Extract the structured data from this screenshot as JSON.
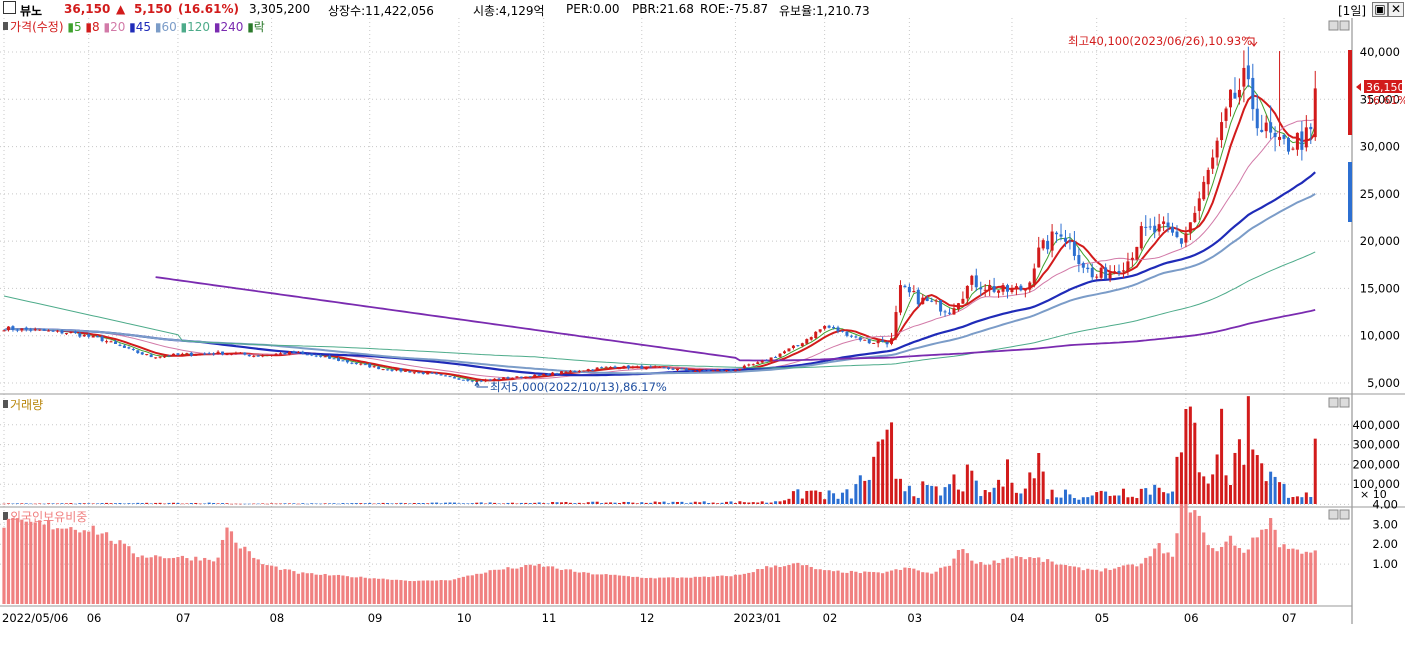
{
  "header": {
    "checkbox": "",
    "name": "뷰노",
    "price": "36,150",
    "change_arrow": "▲",
    "change": "5,150",
    "change_pct": "(16.61%)",
    "volume": "3,305,200",
    "shares": "상장수:11,422,056",
    "mktcap": "시총:4,129억",
    "per": "PER:0.00",
    "pbr": "PBR:21.68",
    "roe": "ROE:-75.87",
    "reserve": "유보율:1,210.73",
    "period": "[1일]",
    "btn_restore": "▣",
    "btn_close": "✕"
  },
  "panels": {
    "price_legend": [
      {
        "text": "가격(수정)",
        "color": "#d21b1b"
      },
      {
        "text": "5",
        "color": "#3fa12e"
      },
      {
        "text": "8",
        "color": "#d21b1b"
      },
      {
        "text": "20",
        "color": "#d27aa8"
      },
      {
        "text": "45",
        "color": "#1f2bb8"
      },
      {
        "text": "60",
        "color": "#7b9cc8"
      },
      {
        "text": "120",
        "color": "#4dab8a"
      },
      {
        "text": "240",
        "color": "#7a2bb0"
      },
      {
        "text": "락",
        "color": "#2b7a2b"
      }
    ],
    "volume_legend": "거래량",
    "foreign_legend": "외국인보유비중",
    "high_annot": "최고40,100(2023/06/26),10.93%",
    "low_annot": "최저5,000(2022/10/13),86.17%",
    "last_price": "36,150",
    "last_pct": "16.61%",
    "volume_unit": "× 10"
  },
  "chart_data": {
    "type": "candlestick",
    "ticker": "뷰노",
    "price_axis_ticks": [
      5000,
      10000,
      15000,
      20000,
      25000,
      30000,
      35000,
      40000
    ],
    "price_axis_labels": [
      "5,000",
      "10,000",
      "15,000",
      "20,000",
      "25,000",
      "30,000",
      "35,000",
      "40,000"
    ],
    "volume_axis_ticks": [
      100000,
      200000,
      300000,
      400000
    ],
    "volume_axis_labels": [
      "100,000",
      "200,000",
      "300,000",
      "400,000"
    ],
    "foreign_axis_ticks": [
      1,
      2,
      3,
      4
    ],
    "foreign_axis_labels": [
      "1.00",
      "2.00",
      "3.00",
      "4.00"
    ],
    "x_labels": [
      {
        "i": 0,
        "label": "2022/05/06"
      },
      {
        "i": 19,
        "label": "06"
      },
      {
        "i": 39,
        "label": "07"
      },
      {
        "i": 60,
        "label": "08"
      },
      {
        "i": 82,
        "label": "09"
      },
      {
        "i": 102,
        "label": "10"
      },
      {
        "i": 121,
        "label": "11"
      },
      {
        "i": 143,
        "label": "12"
      },
      {
        "i": 164,
        "label": "2023/01"
      },
      {
        "i": 184,
        "label": "02"
      },
      {
        "i": 203,
        "label": "03"
      },
      {
        "i": 226,
        "label": "04"
      },
      {
        "i": 245,
        "label": "05"
      },
      {
        "i": 265,
        "label": "06"
      },
      {
        "i": 287,
        "label": "07"
      }
    ],
    "anchors": {
      "close": [
        [
          0,
          10800
        ],
        [
          15,
          10300
        ],
        [
          22,
          9600
        ],
        [
          28,
          8500
        ],
        [
          33,
          7800
        ],
        [
          40,
          8000
        ],
        [
          50,
          8200
        ],
        [
          56,
          7900
        ],
        [
          65,
          8200
        ],
        [
          73,
          7600
        ],
        [
          85,
          6500
        ],
        [
          95,
          6000
        ],
        [
          100,
          5600
        ],
        [
          106,
          5200
        ],
        [
          112,
          5500
        ],
        [
          120,
          5800
        ],
        [
          128,
          6300
        ],
        [
          136,
          6700
        ],
        [
          146,
          6600
        ],
        [
          155,
          6300
        ],
        [
          163,
          6300
        ],
        [
          170,
          7200
        ],
        [
          178,
          9000
        ],
        [
          184,
          11000
        ],
        [
          189,
          10200
        ],
        [
          194,
          9300
        ],
        [
          199,
          9500
        ],
        [
          201,
          14800
        ],
        [
          206,
          13700
        ],
        [
          212,
          12800
        ],
        [
          217,
          15700
        ],
        [
          224,
          14700
        ],
        [
          229,
          15000
        ],
        [
          232,
          18800
        ],
        [
          237,
          21200
        ],
        [
          240,
          19000
        ],
        [
          244,
          16100
        ],
        [
          248,
          16800
        ],
        [
          252,
          18000
        ],
        [
          255,
          20800
        ],
        [
          260,
          21200
        ],
        [
          264,
          20000
        ],
        [
          267,
          23000
        ],
        [
          271,
          28500
        ],
        [
          275,
          34500
        ],
        [
          278,
          36800
        ],
        [
          282,
          32000
        ],
        [
          286,
          29800
        ],
        [
          289,
          30500
        ],
        [
          293,
          31000
        ],
        [
          294,
          36150
        ]
      ],
      "volume": [
        [
          0,
          2000
        ],
        [
          48,
          5000
        ],
        [
          52,
          1500
        ],
        [
          172,
          10000
        ],
        [
          176,
          40000
        ],
        [
          181,
          70000
        ],
        [
          187,
          40000
        ],
        [
          190,
          60000
        ],
        [
          199,
          310000
        ],
        [
          200,
          180000
        ],
        [
          204,
          90000
        ],
        [
          210,
          60000
        ],
        [
          213,
          120000
        ],
        [
          216,
          140000
        ],
        [
          220,
          50000
        ],
        [
          226,
          180000
        ],
        [
          229,
          100000
        ],
        [
          232,
          230000
        ],
        [
          234,
          60000
        ],
        [
          245,
          55000
        ],
        [
          252,
          75000
        ],
        [
          256,
          80000
        ],
        [
          262,
          120000
        ],
        [
          264,
          280000
        ],
        [
          266,
          420000
        ],
        [
          270,
          180000
        ],
        [
          271,
          260000
        ],
        [
          273,
          380000
        ],
        [
          275,
          120000
        ],
        [
          278,
          450000
        ],
        [
          281,
          380000
        ],
        [
          283,
          200000
        ],
        [
          286,
          90000
        ],
        [
          290,
          70000
        ],
        [
          293,
          30000
        ],
        [
          294,
          330000
        ]
      ],
      "foreign": [
        [
          0,
          3.05
        ],
        [
          9,
          3.0
        ],
        [
          15,
          2.85
        ],
        [
          20,
          2.8
        ],
        [
          24,
          2.3
        ],
        [
          30,
          1.45
        ],
        [
          38,
          1.35
        ],
        [
          48,
          1.25
        ],
        [
          50,
          3.0
        ],
        [
          52,
          2.1
        ],
        [
          58,
          1.0
        ],
        [
          66,
          0.55
        ],
        [
          76,
          0.4
        ],
        [
          92,
          0.15
        ],
        [
          100,
          0.2
        ],
        [
          110,
          0.7
        ],
        [
          120,
          0.95
        ],
        [
          130,
          0.55
        ],
        [
          145,
          0.3
        ],
        [
          158,
          0.35
        ],
        [
          165,
          0.45
        ],
        [
          172,
          0.9
        ],
        [
          178,
          1.0
        ],
        [
          184,
          0.65
        ],
        [
          196,
          0.55
        ],
        [
          203,
          0.8
        ],
        [
          208,
          0.5
        ],
        [
          212,
          1.0
        ],
        [
          215,
          1.85
        ],
        [
          218,
          1.0
        ],
        [
          222,
          1.1
        ],
        [
          226,
          1.4
        ],
        [
          232,
          1.25
        ],
        [
          240,
          0.8
        ],
        [
          246,
          0.7
        ],
        [
          251,
          0.85
        ],
        [
          255,
          1.0
        ],
        [
          259,
          1.9
        ],
        [
          262,
          1.3
        ],
        [
          264,
          3.85
        ],
        [
          267,
          4.0
        ],
        [
          269,
          2.4
        ],
        [
          272,
          1.6
        ],
        [
          275,
          2.3
        ],
        [
          278,
          1.6
        ],
        [
          281,
          2.4
        ],
        [
          284,
          3.3
        ],
        [
          286,
          2.0
        ],
        [
          290,
          1.65
        ],
        [
          294,
          1.7
        ]
      ]
    },
    "moving_averages": [
      5,
      8,
      20,
      45,
      60,
      120,
      240
    ],
    "high": {
      "value": 40100,
      "date": "2023/06/26"
    },
    "low": {
      "value": 5000,
      "date": "2022/10/13"
    }
  },
  "colors": {
    "up": "#d21b1b",
    "down": "#2c6fd1",
    "grid": "#c8c8c8",
    "ma5": "#3fa12e",
    "ma8": "#d21b1b",
    "ma20": "#d27aa8",
    "ma45": "#1f2bb8",
    "ma60": "#7b9cc8",
    "ma120": "#4dab8a",
    "ma240": "#7a2bb0",
    "foreign": "#f08080"
  }
}
